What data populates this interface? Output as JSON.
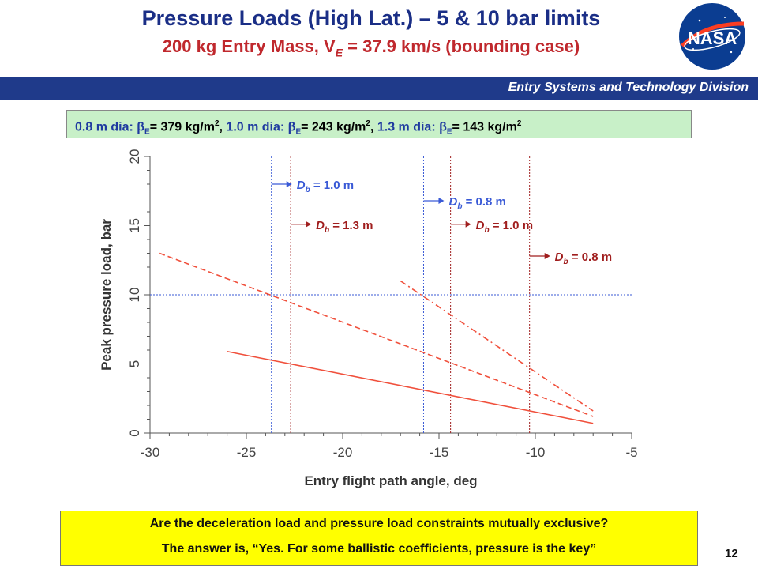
{
  "slide": {
    "title": "Pressure Loads (High Lat.) – 5 & 10 bar limits",
    "subtitle_prefix": "200 kg Entry Mass, V",
    "subtitle_sub": "E",
    "subtitle_suffix": " = 37.9 km/s (bounding case)",
    "logo_text": "NASA",
    "division": "Entry Systems and Technology Division",
    "page_number": "12"
  },
  "info": {
    "d1": "0.8 m dia: ",
    "b1": "= 379 kg/m",
    "d2": "1.0 m dia: ",
    "b2": "= 243 kg/m",
    "d3": "1.3 m dia: ",
    "b3": "= 143 kg/m",
    "beta": "β",
    "sub": "E",
    "sup": "2",
    "sep": ", "
  },
  "question": {
    "line1": "Are the deceleration load and pressure load constraints mutually exclusive?",
    "line2": "The answer is, “Yes. For some ballistic coefficients, pressure is the key”"
  },
  "colors": {
    "title": "#1a2e86",
    "subtitle": "#c0282d",
    "band": "#1f3a8a",
    "red_series": "#f0503c",
    "blue_lines": "#3a5ad6",
    "red_lines": "#a01e1e"
  },
  "chart_data": {
    "type": "line",
    "xlabel": "Entry flight path angle, deg",
    "ylabel": "Peak pressure load, bar",
    "xlim": [
      -30,
      -5
    ],
    "ylim": [
      0,
      20
    ],
    "xticks": [
      -30,
      -25,
      -20,
      -15,
      -10,
      -5
    ],
    "yticks": [
      0,
      5,
      10,
      15,
      20
    ],
    "series": [
      {
        "style": "solid",
        "x": [
          -26,
          -7
        ],
        "y": [
          5.9,
          0.7
        ]
      },
      {
        "style": "dashed",
        "x": [
          -29.5,
          -7
        ],
        "y": [
          13.0,
          1.2
        ]
      },
      {
        "style": "dashdot",
        "x": [
          -17,
          -7
        ],
        "y": [
          11.0,
          1.6
        ]
      }
    ],
    "hlines": [
      {
        "y": 10,
        "color": "blue"
      },
      {
        "y": 5,
        "color": "red"
      }
    ],
    "vlines": [
      {
        "x": -23.7,
        "color": "blue"
      },
      {
        "x": -15.8,
        "color": "blue"
      },
      {
        "x": -22.7,
        "color": "red"
      },
      {
        "x": -14.4,
        "color": "red"
      },
      {
        "x": -10.3,
        "color": "red"
      }
    ],
    "annotations": [
      {
        "x": -23.7,
        "y": 18.0,
        "label_prefix": "D",
        "label_sub": "b",
        "label_value": " = 1.0 m",
        "color": "blue"
      },
      {
        "x": -15.8,
        "y": 16.8,
        "label_prefix": "D",
        "label_sub": "b",
        "label_value": " = 0.8 m",
        "color": "blue"
      },
      {
        "x": -22.7,
        "y": 15.1,
        "label_prefix": "D",
        "label_sub": "b",
        "label_value": " = 1.3 m",
        "color": "red"
      },
      {
        "x": -14.4,
        "y": 15.1,
        "label_prefix": "D",
        "label_sub": "b",
        "label_value": " = 1.0 m",
        "color": "red"
      },
      {
        "x": -10.3,
        "y": 12.8,
        "label_prefix": "D",
        "label_sub": "b",
        "label_value": " = 0.8 m",
        "color": "red"
      }
    ]
  }
}
